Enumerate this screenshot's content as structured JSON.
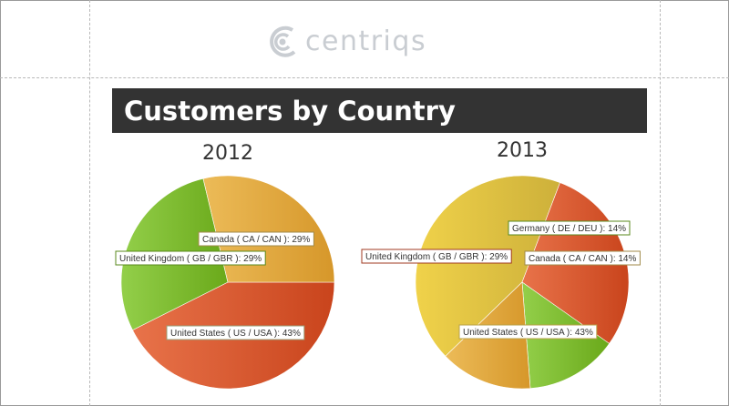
{
  "logo": {
    "text": "centriqs"
  },
  "report": {
    "title": "Customers by Country"
  },
  "chart_data": [
    {
      "type": "pie",
      "title": "2012",
      "slices": [
        {
          "label": "United States ( US / USA ): 43%",
          "value": 43,
          "color_start": "#e8734a",
          "color_end": "#c9441c",
          "label_border": "#9aa07a"
        },
        {
          "label": "United Kingdom ( GB / GBR ): 29%",
          "value": 29,
          "color_start": "#93cf4a",
          "color_end": "#6aa91a",
          "label_border": "#5a8a1e"
        },
        {
          "label": "Canada ( CA / CAN ): 29%",
          "value": 29,
          "color_start": "#ecbb58",
          "color_end": "#d6972a",
          "label_border": "#a08a4a"
        }
      ]
    },
    {
      "type": "pie",
      "title": "2013",
      "slices": [
        {
          "label": "United States ( US / USA ): 43%",
          "value": 43,
          "color_start": "#f0d24a",
          "color_end": "#cdb03a",
          "label_border": "#b8a24a"
        },
        {
          "label": "United Kingdom ( GB / GBR ): 29%",
          "value": 29,
          "color_start": "#e8734a",
          "color_end": "#c9441c",
          "label_border": "#a03a20"
        },
        {
          "label": "Germany ( DE / DEU ): 14%",
          "value": 14,
          "color_start": "#93cf4a",
          "color_end": "#6aa91a",
          "label_border": "#5a8a1e"
        },
        {
          "label": "Canada ( CA / CAN ): 14%",
          "value": 14,
          "color_start": "#ecbb58",
          "color_end": "#d6972a",
          "label_border": "#a08a4a"
        }
      ]
    }
  ]
}
